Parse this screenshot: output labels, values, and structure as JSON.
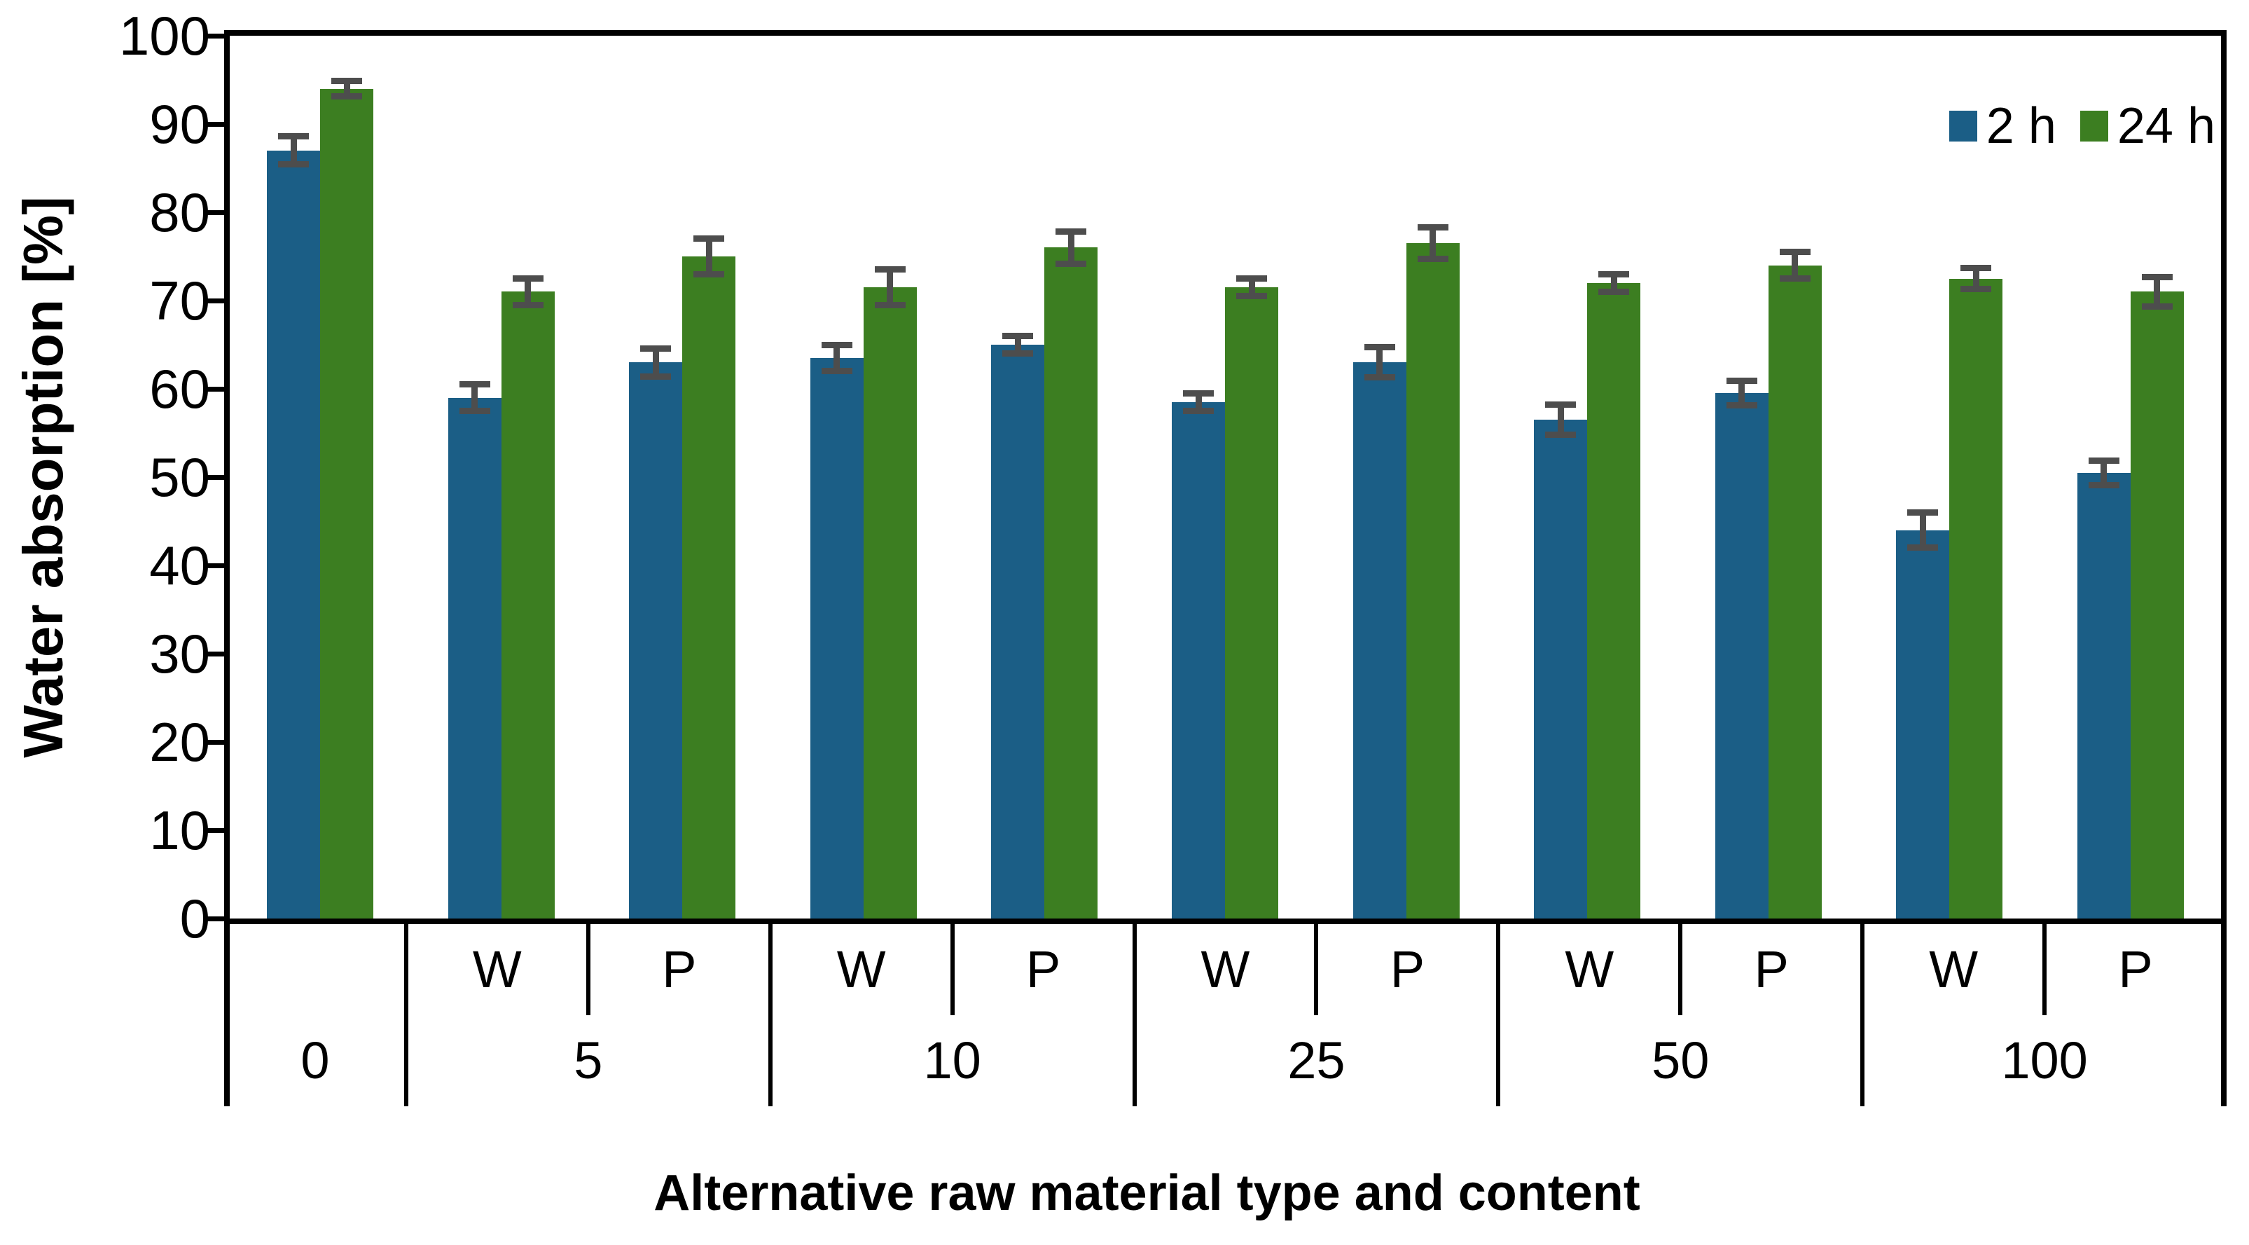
{
  "chart_data": {
    "type": "bar",
    "title": "",
    "ylabel": "Water absorption [%]",
    "xlabel": "Alternative raw material type and content",
    "ylim": [
      0,
      100
    ],
    "yticks": [
      0,
      10,
      20,
      30,
      40,
      50,
      60,
      70,
      80,
      90,
      100
    ],
    "grid": false,
    "legend_position": "top-right-inside",
    "error_bar_color": "#4d4d4d",
    "axis_color": "#000000",
    "series": [
      {
        "name": "2 h",
        "color": "#1b5e86"
      },
      {
        "name": "24 h",
        "color": "#3c7e21"
      }
    ],
    "groups": [
      {
        "label": "0",
        "cells": [
          {
            "sub": "",
            "values": [
              87,
              94
            ],
            "errors": [
              1.6,
              0.9
            ]
          }
        ]
      },
      {
        "label": "5",
        "cells": [
          {
            "sub": "W",
            "values": [
              59,
              71
            ],
            "errors": [
              1.5,
              1.5
            ]
          },
          {
            "sub": "P",
            "values": [
              63,
              75
            ],
            "errors": [
              1.6,
              2.0
            ]
          }
        ]
      },
      {
        "label": "10",
        "cells": [
          {
            "sub": "W",
            "values": [
              63.5,
              71.5
            ],
            "errors": [
              1.5,
              2.0
            ]
          },
          {
            "sub": "P",
            "values": [
              65,
              76
            ],
            "errors": [
              1.0,
              1.8
            ]
          }
        ]
      },
      {
        "label": "25",
        "cells": [
          {
            "sub": "W",
            "values": [
              58.5,
              71.5
            ],
            "errors": [
              1.0,
              1.0
            ]
          },
          {
            "sub": "P",
            "values": [
              63,
              76.5
            ],
            "errors": [
              1.7,
              1.8
            ]
          }
        ]
      },
      {
        "label": "50",
        "cells": [
          {
            "sub": "W",
            "values": [
              56.5,
              72
            ],
            "errors": [
              1.7,
              1.0
            ]
          },
          {
            "sub": "P",
            "values": [
              59.5,
              74
            ],
            "errors": [
              1.4,
              1.5
            ]
          }
        ]
      },
      {
        "label": "100",
        "cells": [
          {
            "sub": "W",
            "values": [
              44,
              72.5
            ],
            "errors": [
              2.0,
              1.2
            ]
          },
          {
            "sub": "P",
            "values": [
              50.5,
              71
            ],
            "errors": [
              1.4,
              1.7
            ]
          }
        ]
      }
    ]
  }
}
